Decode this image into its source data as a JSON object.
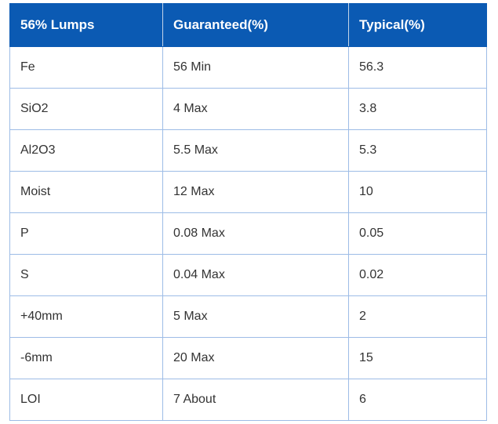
{
  "table": {
    "headers": [
      "56% Lumps",
      "Guaranteed(%)",
      "Typical(%)"
    ],
    "rows": [
      [
        "Fe",
        "56 Min",
        "56.3"
      ],
      [
        "SiO2",
        "4 Max",
        "3.8"
      ],
      [
        "Al2O3",
        "5.5 Max",
        "5.3"
      ],
      [
        "Moist",
        "12 Max",
        "10"
      ],
      [
        "P",
        "0.08 Max",
        "0.05"
      ],
      [
        "S",
        "0.04 Max",
        "0.02"
      ],
      [
        "+40mm",
        "5 Max",
        "2"
      ],
      [
        "-6mm",
        "20 Max",
        "15"
      ],
      [
        "LOI",
        "7 About",
        "6"
      ]
    ]
  },
  "colors": {
    "header_background": "#0b5ab3",
    "header_text": "#ffffff",
    "cell_border": "#9dbce6",
    "cell_text": "#333333"
  }
}
